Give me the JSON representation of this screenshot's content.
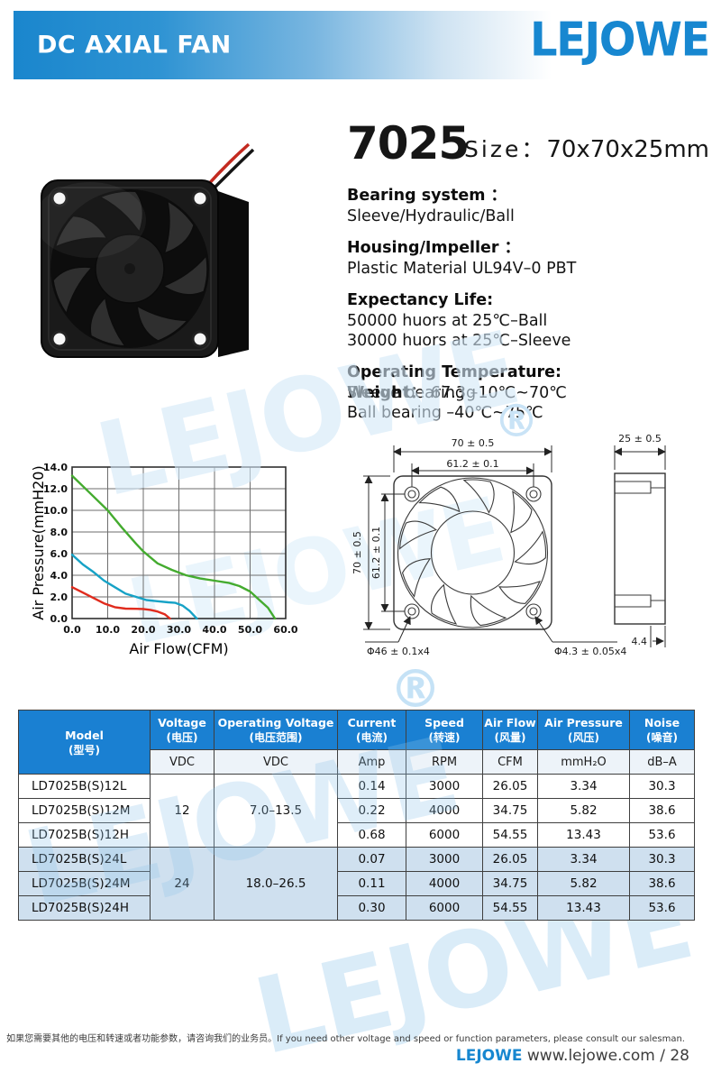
{
  "header": {
    "title": "DC AXIAL FAN",
    "brand": "LEJOWE",
    "registered_mark": "®"
  },
  "product": {
    "model": "7025",
    "size_label": "Size：",
    "size_value": "70x70x25mm",
    "specs": [
      {
        "title": "Bearing system ：",
        "lines": [
          "Sleeve/Hydraulic/Ball"
        ]
      },
      {
        "title": "Housing/Impeller ：",
        "lines": [
          "Plastic Material UL94V–0 PBT"
        ]
      },
      {
        "title": "Expectancy Life:",
        "lines": [
          "50000 huors at 25℃–Ball",
          "30000 huors at 25℃–Sleeve"
        ]
      },
      {
        "title": "Operating Temperature:",
        "lines": [
          "Sleeve bearing –10℃~70℃",
          "Ball bearing –40℃~75℃"
        ]
      }
    ],
    "weight_label": "Weight：",
    "weight_value": "67.3g"
  },
  "chart_data": {
    "type": "line",
    "title": "",
    "xlabel": "Air Flow(CFM)",
    "ylabel": "Air Pressure(mmH20)",
    "xlim": [
      0,
      60
    ],
    "ylim": [
      0,
      14
    ],
    "x_ticks": [
      "0.0",
      "10.0",
      "20.0",
      "30.0",
      "40.0",
      "50.0",
      "60.0"
    ],
    "y_ticks": [
      "0.0",
      "2.0",
      "4.0",
      "6.0",
      "8.0",
      "10.0",
      "12.0",
      "14.0"
    ],
    "grid": true,
    "legend": "none",
    "series": [
      {
        "name": "green-high-speed",
        "color": "#44ab2f",
        "points": [
          [
            0,
            13.2
          ],
          [
            5,
            11.6
          ],
          [
            10,
            10.0
          ],
          [
            14,
            8.4
          ],
          [
            18,
            6.9
          ],
          [
            20,
            6.2
          ],
          [
            24,
            5.1
          ],
          [
            28,
            4.5
          ],
          [
            32,
            4.0
          ],
          [
            36,
            3.7
          ],
          [
            40,
            3.5
          ],
          [
            44,
            3.3
          ],
          [
            47,
            3.0
          ],
          [
            50,
            2.5
          ],
          [
            52,
            1.9
          ],
          [
            55,
            1.0
          ],
          [
            57,
            0
          ]
        ]
      },
      {
        "name": "blue-middle-speed",
        "color": "#16a2c6",
        "points": [
          [
            0,
            5.9
          ],
          [
            3,
            5.0
          ],
          [
            6,
            4.3
          ],
          [
            9,
            3.5
          ],
          [
            12,
            2.9
          ],
          [
            15,
            2.3
          ],
          [
            18,
            2.0
          ],
          [
            21,
            1.7
          ],
          [
            24,
            1.6
          ],
          [
            27,
            1.5
          ],
          [
            29,
            1.45
          ],
          [
            31,
            1.2
          ],
          [
            33,
            0.7
          ],
          [
            35,
            0
          ]
        ]
      },
      {
        "name": "red-low-speed",
        "color": "#e02b1d",
        "points": [
          [
            0,
            2.9
          ],
          [
            3,
            2.4
          ],
          [
            6,
            1.9
          ],
          [
            9,
            1.4
          ],
          [
            12,
            1.05
          ],
          [
            15,
            0.92
          ],
          [
            18,
            0.9
          ],
          [
            20,
            0.88
          ],
          [
            22,
            0.8
          ],
          [
            24,
            0.65
          ],
          [
            26,
            0.4
          ],
          [
            27.5,
            0
          ]
        ]
      }
    ]
  },
  "drawings": {
    "front": {
      "width_dim": "70 ± 0.5",
      "inner_width_dim": "61.2 ± 0.1",
      "height_dim": "70 ± 0.5",
      "inner_height_dim": "61.2 ± 0.1",
      "mount_circle_dim": "Φ46 ± 0.1x4",
      "hole_dia_dim": "Φ4.3 ± 0.05x4"
    },
    "side": {
      "depth_dim": "25 ± 0.5",
      "flange_dim": "4.4"
    }
  },
  "table": {
    "headers": [
      {
        "en": "Model",
        "zh": "(型号)"
      },
      {
        "en": "Voltage",
        "zh": "(电压)",
        "unit": "VDC"
      },
      {
        "en": "Operating Voltage",
        "zh": "(电压范围)",
        "unit": "VDC"
      },
      {
        "en": "Current",
        "zh": "(电流)",
        "unit": "Amp"
      },
      {
        "en": "Speed",
        "zh": "(转速)",
        "unit": "RPM"
      },
      {
        "en": "Air Flow",
        "zh": "(风量)",
        "unit": "CFM"
      },
      {
        "en": "Air Pressure",
        "zh": "(风压)",
        "unit": "mmH₂O"
      },
      {
        "en": "Noise",
        "zh": "(噪音)",
        "unit": "dB–A"
      }
    ],
    "groups": [
      {
        "voltage": "12",
        "operating_voltage": "7.0–13.5",
        "rows": [
          {
            "model": "LD7025B(S)12L",
            "current": "0.14",
            "speed": "3000",
            "air_flow": "26.05",
            "air_pressure": "3.34",
            "noise": "30.3"
          },
          {
            "model": "LD7025B(S)12M",
            "current": "0.22",
            "speed": "4000",
            "air_flow": "34.75",
            "air_pressure": "5.82",
            "noise": "38.6"
          },
          {
            "model": "LD7025B(S)12H",
            "current": "0.68",
            "speed": "6000",
            "air_flow": "54.55",
            "air_pressure": "13.43",
            "noise": "53.6"
          }
        ]
      },
      {
        "voltage": "24",
        "operating_voltage": "18.0–26.5",
        "rows": [
          {
            "model": "LD7025B(S)24L",
            "current": "0.07",
            "speed": "3000",
            "air_flow": "26.05",
            "air_pressure": "3.34",
            "noise": "30.3"
          },
          {
            "model": "LD7025B(S)24M",
            "current": "0.11",
            "speed": "4000",
            "air_flow": "34.75",
            "air_pressure": "5.82",
            "noise": "38.6"
          },
          {
            "model": "LD7025B(S)24H",
            "current": "0.30",
            "speed": "6000",
            "air_flow": "54.55",
            "air_pressure": "13.43",
            "noise": "53.6"
          }
        ]
      }
    ]
  },
  "footer": {
    "note": "如果您需要其他的电压和转速或者功能参数，请咨询我们的业务员。If you need other voltage and speed or function parameters, please consult our salesman.",
    "brand": "LEJOWE",
    "website": "www.lejowe.com / 28"
  },
  "watermark": {
    "text": "LEJOWE",
    "mark": "®"
  }
}
